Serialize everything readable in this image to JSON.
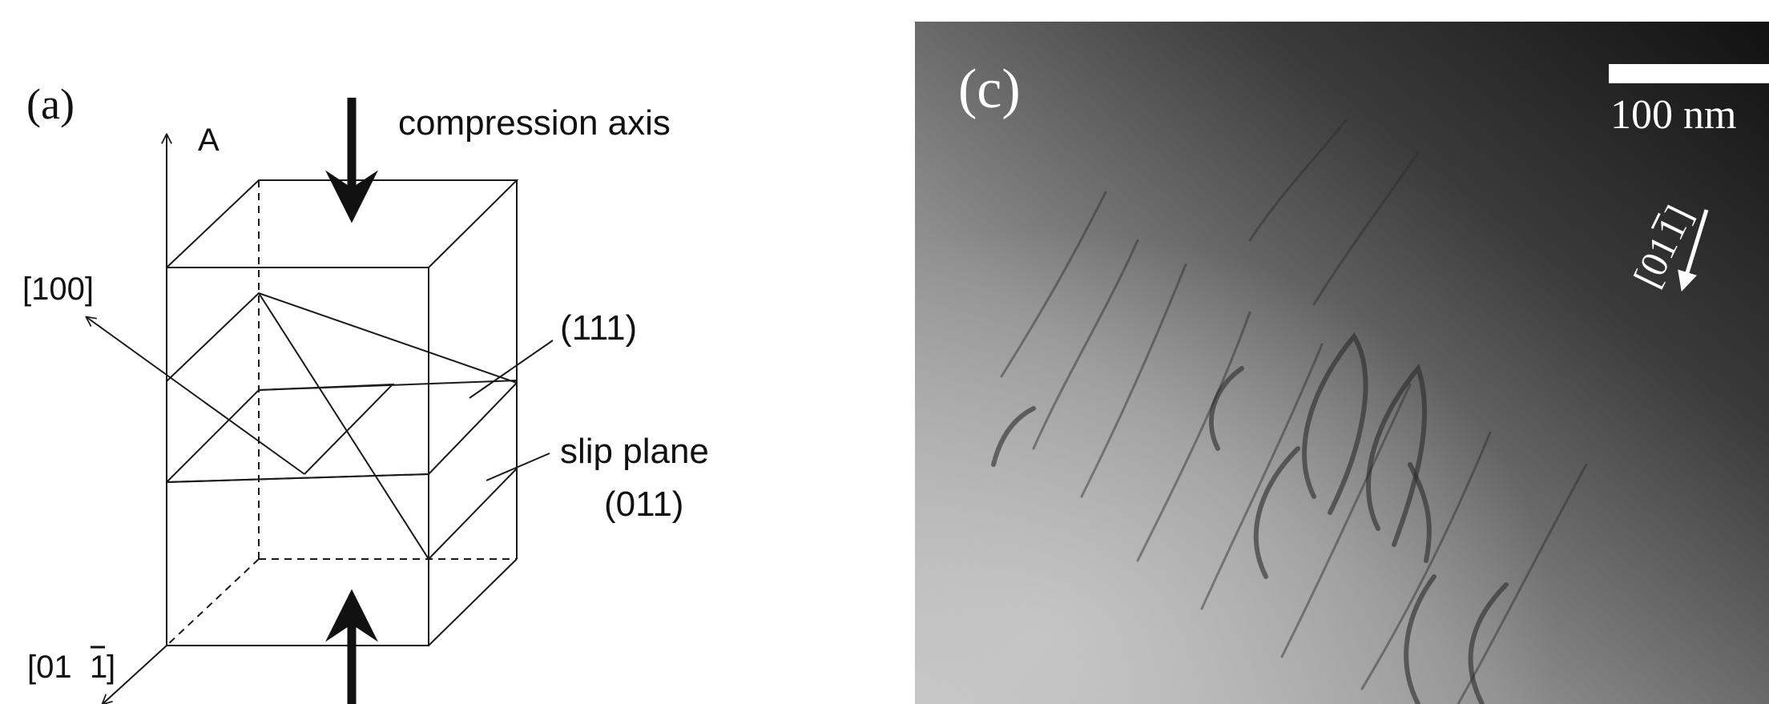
{
  "panel_a": {
    "label": "(a)",
    "axis_a": "A",
    "compression_axis": "compression axis",
    "dir_100": "[100]",
    "plane_111": "(111)",
    "slip_plane_title": "slip plane",
    "slip_plane_index": "(011)",
    "dir_01bar1": {
      "main": "[01",
      "bar": "1",
      "close": "]"
    }
  },
  "panel_c": {
    "label": "(c)",
    "scale_bar": "100 nm",
    "direction": {
      "main": "[01",
      "bar": "1",
      "close": "]"
    }
  },
  "colors": {
    "line": "#1a1a1a",
    "tem_bright": "#b4b4b4",
    "tem_dark": "#111111"
  }
}
